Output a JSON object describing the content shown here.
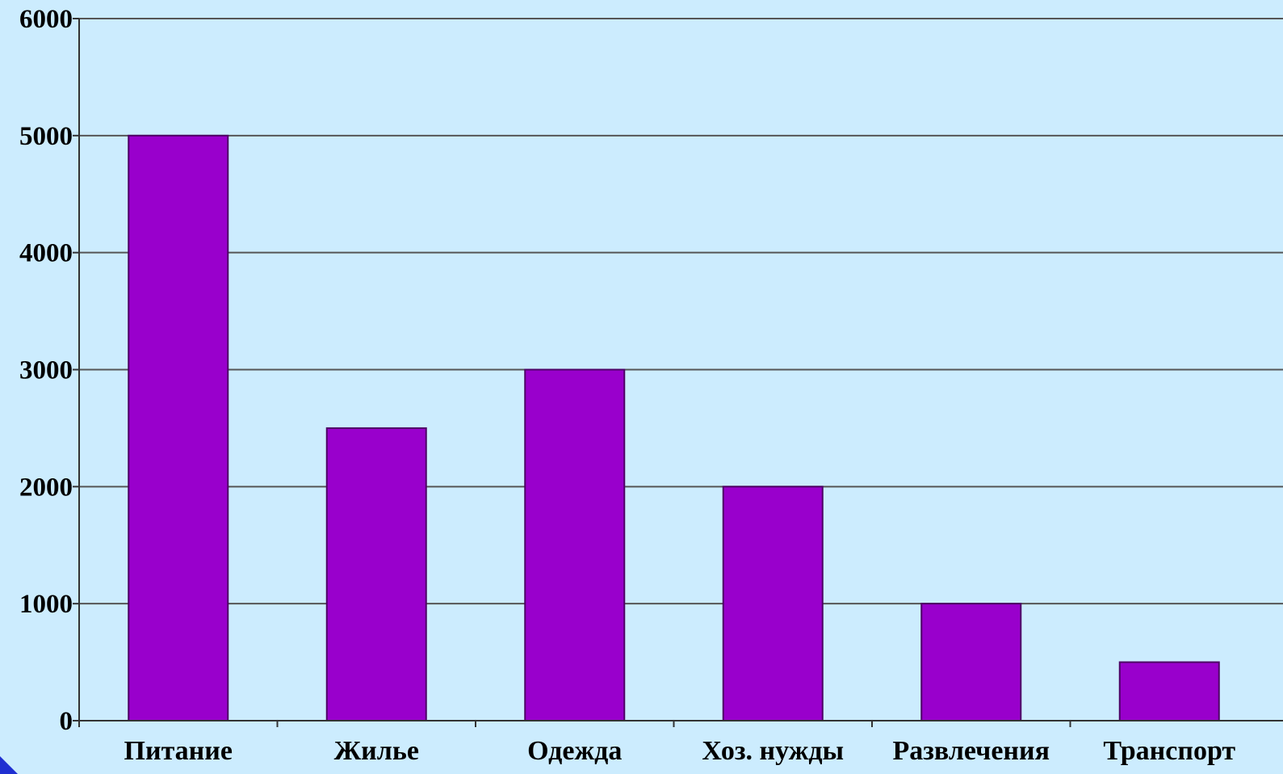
{
  "chart_data": {
    "type": "bar",
    "categories": [
      "Питание",
      "Жилье",
      "Одежда",
      "Хоз. нужды",
      "Развлечения",
      "Транспорт"
    ],
    "values": [
      5000,
      2500,
      3000,
      2000,
      1000,
      500
    ],
    "yticks": [
      "0",
      "1000",
      "2000",
      "3000",
      "4000",
      "5000",
      "6000"
    ],
    "ylim": [
      0,
      6000
    ],
    "grid": true,
    "legend": "none",
    "colors": {
      "background": "#ccecfe",
      "bar": "#9900cc",
      "bar_edge": "#4d0066",
      "grid": "#555555",
      "axis": "#333333",
      "text": "#000000",
      "corner_accent": "#1f2fd1"
    }
  }
}
